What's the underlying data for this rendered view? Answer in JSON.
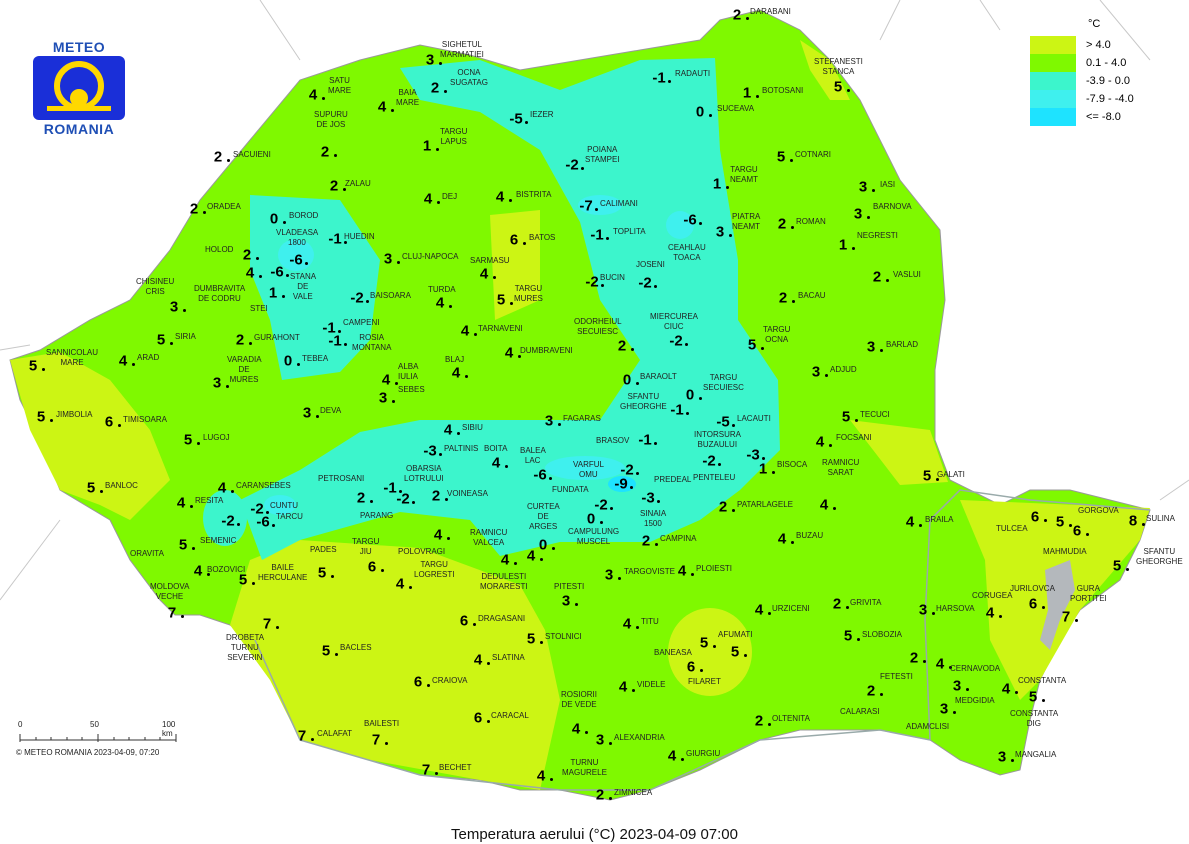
{
  "logo": {
    "top": "METEO",
    "bottom": "ROMANIA"
  },
  "legend": {
    "unit": "°C",
    "items": [
      {
        "label": "> 4.0",
        "color": "#ccf514"
      },
      {
        "label": "0.1 - 4.0",
        "color": "#7ff900"
      },
      {
        "label": "-3.9 - 0.0",
        "color": "#3cf5cc"
      },
      {
        "label": "-7.9 - -4.0",
        "color": "#3ff0ee"
      },
      {
        "label": "<= -8.0",
        "color": "#1ee3ff"
      }
    ]
  },
  "scale": {
    "ticks": [
      "0",
      "50",
      "100 km"
    ],
    "copyright": "© METEO ROMANIA 2023-04-09, 07:20"
  },
  "title": "Temperatura aerului (°C) 2023-04-09 07:00",
  "map": {
    "stations": [
      {
        "name": "DARABANI",
        "value": "2"
      },
      {
        "name": "SIGHETUL MARMATIEI",
        "value": "3"
      },
      {
        "name": "OCNA SUGATAG",
        "value": "2"
      },
      {
        "name": "SATU MARE",
        "value": "4"
      },
      {
        "name": "BAIA MARE",
        "value": "4"
      },
      {
        "name": "RADAUTI",
        "value": "-1"
      },
      {
        "name": "BOTOSANI",
        "value": "1"
      },
      {
        "name": "STEFANESTI STANCA",
        "value": "5"
      },
      {
        "name": "SUCEAVA",
        "value": "0"
      },
      {
        "name": "IEZER",
        "value": "-5"
      },
      {
        "name": "SUPURU DE JOS",
        "value": "2"
      },
      {
        "name": "TARGU LAPUS",
        "value": "1"
      },
      {
        "name": "SACUIENI",
        "value": "2"
      },
      {
        "name": "POIANA STAMPEI",
        "value": "-2"
      },
      {
        "name": "TARGU NEAMT",
        "value": "1"
      },
      {
        "name": "COTNARI",
        "value": "5"
      },
      {
        "name": "IASI",
        "value": "3"
      },
      {
        "name": "ZALAU",
        "value": "2"
      },
      {
        "name": "DEJ",
        "value": "4"
      },
      {
        "name": "BISTRITA",
        "value": "4"
      },
      {
        "name": "CALIMANI",
        "value": "-7"
      },
      {
        "name": "BARNOVA",
        "value": "3"
      },
      {
        "name": "ORADEA",
        "value": "2"
      },
      {
        "name": "BOROD",
        "value": "0"
      },
      {
        "name": "PIATRA NEAMT",
        "value": "3"
      },
      {
        "name": "ROMAN",
        "value": "2"
      },
      {
        "name": "CEAHLAU TOACA",
        "value": "-6"
      },
      {
        "name": "VLADEASA 1800",
        "value": "-6"
      },
      {
        "name": "HUEDIN",
        "value": "-1"
      },
      {
        "name": "TOPLITA",
        "value": "-1"
      },
      {
        "name": "NEGRESTI",
        "value": "1"
      },
      {
        "name": "BATOS",
        "value": "6"
      },
      {
        "name": "HOLOD",
        "value": "2"
      },
      {
        "name": "CLUJ-NAPOCA",
        "value": "3"
      },
      {
        "name": "SARMASU",
        "value": "4"
      },
      {
        "name": "STANA DE VALE",
        "value": "-6"
      },
      {
        "name": "DUMBRAVITA DE CODRU",
        "value": "4"
      },
      {
        "name": "CHISINEU CRIS",
        "value": "3"
      },
      {
        "name": "STEI",
        "value": "1"
      },
      {
        "name": "BUCIN",
        "value": "-2"
      },
      {
        "name": "JOSENI",
        "value": "-2"
      },
      {
        "name": "VASLUI",
        "value": "2"
      },
      {
        "name": "BAISOARA",
        "value": "-2"
      },
      {
        "name": "TURDA",
        "value": "4"
      },
      {
        "name": "TARGU MURES",
        "value": "5"
      },
      {
        "name": "BACAU",
        "value": "2"
      },
      {
        "name": "SIRIA",
        "value": "5"
      },
      {
        "name": "GURAHONT",
        "value": "2"
      },
      {
        "name": "CAMPENI",
        "value": "-1"
      },
      {
        "name": "ROSIA MONTANA",
        "value": "-1"
      },
      {
        "name": "TARNAVENI",
        "value": "4"
      },
      {
        "name": "ODORHEIUL SECUIESC",
        "value": "2"
      },
      {
        "name": "MIERCUREA CIUC",
        "value": "-2"
      },
      {
        "name": "TARGU OCNA",
        "value": "5"
      },
      {
        "name": "BARLAD",
        "value": "3"
      },
      {
        "name": "SANNICOLAU MARE",
        "value": "5"
      },
      {
        "name": "ARAD",
        "value": "4"
      },
      {
        "name": "VARADIA DE MURES",
        "value": "3"
      },
      {
        "name": "TEBEA",
        "value": "0"
      },
      {
        "name": "DUMBRAVENI",
        "value": "4"
      },
      {
        "name": "BLAJ",
        "value": "4"
      },
      {
        "name": "ALBA IULIA",
        "value": "4"
      },
      {
        "name": "SEBES",
        "value": "3"
      },
      {
        "name": "BARAOLT",
        "value": "0"
      },
      {
        "name": "TARGU SECUIESC",
        "value": "0"
      },
      {
        "name": "ADJUD",
        "value": "3"
      },
      {
        "name": "SFANTU GHEORGHE",
        "value": "-1"
      },
      {
        "name": "JIMBOLIA",
        "value": "5"
      },
      {
        "name": "TIMISOARA",
        "value": "6"
      },
      {
        "name": "DEVA",
        "value": "3"
      },
      {
        "name": "SIBIU",
        "value": "4"
      },
      {
        "name": "FAGARAS",
        "value": "3"
      },
      {
        "name": "LACAUTI",
        "value": "-5"
      },
      {
        "name": "TECUCI",
        "value": "5"
      },
      {
        "name": "LUGOJ",
        "value": "5"
      },
      {
        "name": "PALTINIS",
        "value": "-3"
      },
      {
        "name": "BOITA",
        "value": "4"
      },
      {
        "name": "BALEA LAC",
        "value": "-6"
      },
      {
        "name": "BRASOV",
        "value": "-1"
      },
      {
        "name": "INTORSURA BUZAULUI",
        "value": "-2"
      },
      {
        "name": "PENTELEU",
        "value": "-3"
      },
      {
        "name": "BISOCA",
        "value": "1"
      },
      {
        "name": "FOCSANI",
        "value": "4"
      },
      {
        "name": "PETROSANI",
        "value": "2"
      },
      {
        "name": "OBARSIA LOTRULUI",
        "value": "-1"
      },
      {
        "name": "PARANG",
        "value": "-2"
      },
      {
        "name": "VOINEASA",
        "value": "2"
      },
      {
        "name": "VARFUL OMU",
        "value": "-2"
      },
      {
        "name": "FUNDATA",
        "value": "-2"
      },
      {
        "name": "PREDEAL",
        "value": "-9"
      },
      {
        "name": "SINAIA 1500",
        "value": "-3"
      },
      {
        "name": "CURTEA DE ARGES",
        "value": "0"
      },
      {
        "name": "CAMPULUNG MUSCEL",
        "value": "0"
      },
      {
        "name": "PATARLAGELE",
        "value": "2"
      },
      {
        "name": "RAMNICU SARAT",
        "value": "4"
      },
      {
        "name": "GALATI",
        "value": "5"
      },
      {
        "name": "BANLOC",
        "value": "5"
      },
      {
        "name": "CARANSEBES",
        "value": "4"
      },
      {
        "name": "RESITA",
        "value": "4"
      },
      {
        "name": "CUNTU",
        "value": "-2"
      },
      {
        "name": "TARCU",
        "value": "-6"
      },
      {
        "name": "SEMENIC",
        "value": "-2"
      },
      {
        "name": "ORAVITA",
        "value": "5"
      },
      {
        "name": "BOZOVICI",
        "value": "4"
      },
      {
        "name": "BAILE HERCULANE",
        "value": "5"
      },
      {
        "name": "PADES",
        "value": "5"
      },
      {
        "name": "TARGU JIU",
        "value": "6"
      },
      {
        "name": "POLOVRAGI",
        "value": "4"
      },
      {
        "name": "TARGU LOGRESTI",
        "value": "4"
      },
      {
        "name": "RAMNICU VALCEA",
        "value": "4"
      },
      {
        "name": "DEDULESTI MORARESTI",
        "value": "4"
      },
      {
        "name": "MOLDOVA VECHE",
        "value": "7"
      },
      {
        "name": "DROBETA TURNU SEVERIN",
        "value": "7"
      },
      {
        "name": "BACLES",
        "value": "5"
      },
      {
        "name": "DRAGASANI",
        "value": "6"
      },
      {
        "name": "STOLNICI",
        "value": "5"
      },
      {
        "name": "PITESTI",
        "value": "3"
      },
      {
        "name": "TARGOVISTE",
        "value": "3"
      },
      {
        "name": "PLOIESTI",
        "value": "4"
      },
      {
        "name": "CAMPINA",
        "value": "2"
      },
      {
        "name": "BUZAU",
        "value": "4"
      },
      {
        "name": "BRAILA",
        "value": "4"
      },
      {
        "name": "TULCEA",
        "value": "6"
      },
      {
        "name": "GORGOVA",
        "value": "5"
      },
      {
        "name": "MAHMUDIA",
        "value": "6"
      },
      {
        "name": "SULINA",
        "value": "8"
      },
      {
        "name": "SFANTU GHEORGHE",
        "value": "5"
      },
      {
        "name": "JURILOVCA",
        "value": "6"
      },
      {
        "name": "GURA PORTITEI",
        "value": "7"
      },
      {
        "name": "CORUGEA",
        "value": "4"
      },
      {
        "name": "HARSOVA",
        "value": "3"
      },
      {
        "name": "GRIVITA",
        "value": "2"
      },
      {
        "name": "URZICENI",
        "value": "4"
      },
      {
        "name": "SLOBOZIA",
        "value": "5"
      },
      {
        "name": "TITU",
        "value": "4"
      },
      {
        "name": "AFUMATI",
        "value": "5"
      },
      {
        "name": "BANEASA",
        "value": "5"
      },
      {
        "name": "FILARET",
        "value": "6"
      },
      {
        "name": "SLATINA",
        "value": "4"
      },
      {
        "name": "CRAIOVA",
        "value": "6"
      },
      {
        "name": "FETESTI",
        "value": "2"
      },
      {
        "name": "CERNAVODA",
        "value": "4"
      },
      {
        "name": "MEDGIDIA",
        "value": "3"
      },
      {
        "name": "CONSTANTA",
        "value": "4"
      },
      {
        "name": "CONSTANTA DIG",
        "value": "5"
      },
      {
        "name": "CALARASI",
        "value": "2"
      },
      {
        "name": "ADAMCLISI",
        "value": "3"
      },
      {
        "name": "OLTENITA",
        "value": "2"
      },
      {
        "name": "MANGALIA",
        "value": "3"
      },
      {
        "name": "VIDELE",
        "value": "4"
      },
      {
        "name": "ROSIORII DE VEDE",
        "value": "4"
      },
      {
        "name": "ALEXANDRIA",
        "value": "3"
      },
      {
        "name": "CARACAL",
        "value": "6"
      },
      {
        "name": "CALAFAT",
        "value": "7"
      },
      {
        "name": "BAILESTI",
        "value": "7"
      },
      {
        "name": "BECHET",
        "value": "7"
      },
      {
        "name": "GIURGIU",
        "value": "4"
      },
      {
        "name": "TURNU MAGURELE",
        "value": "4"
      },
      {
        "name": "ZIMNICEA",
        "value": "2"
      }
    ]
  }
}
